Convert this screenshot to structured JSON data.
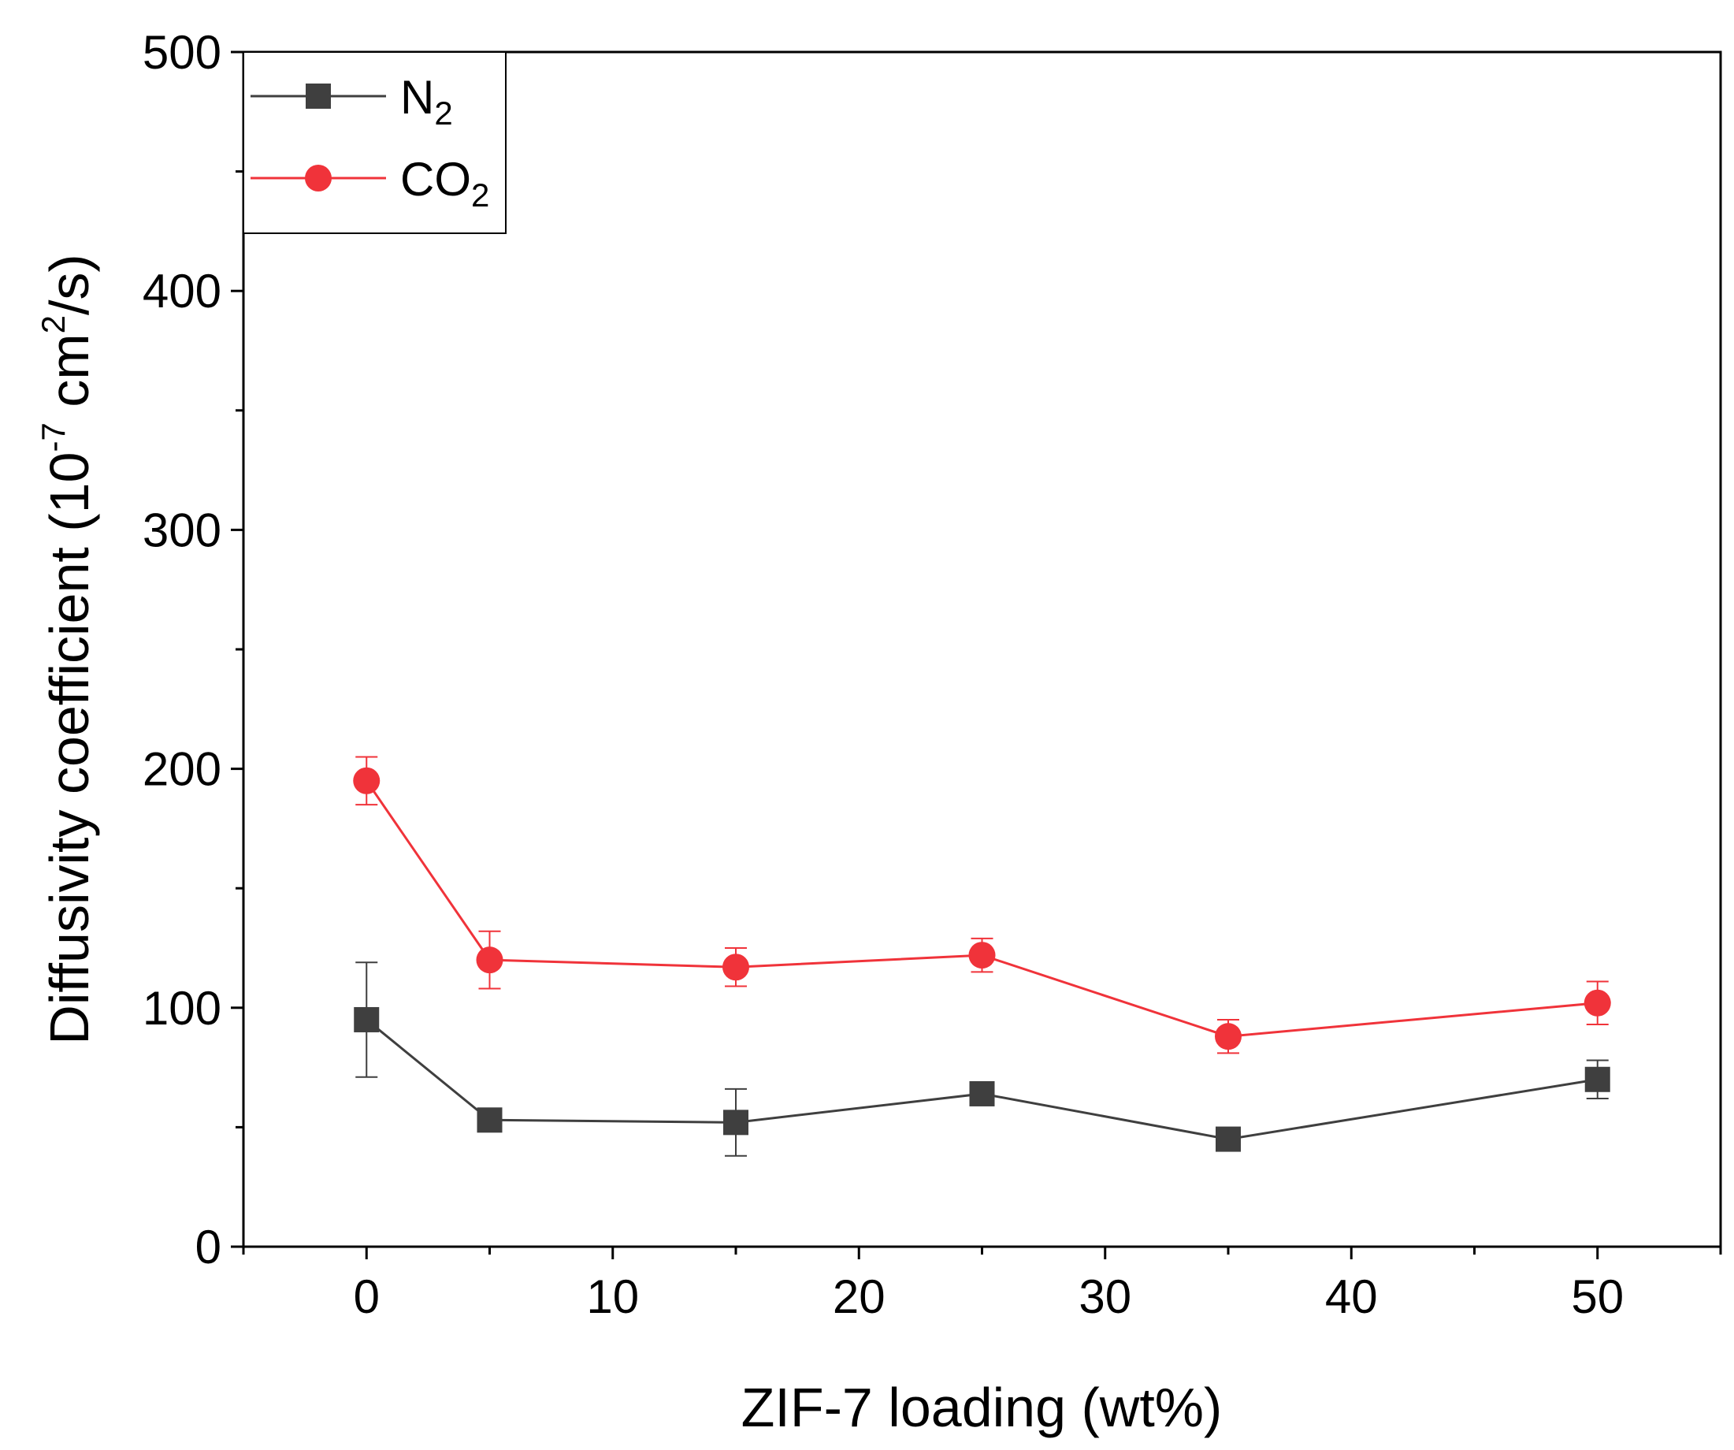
{
  "chart_data": {
    "type": "line",
    "title": "",
    "xlabel": "ZIF-7 loading (wt%)",
    "ylabel": {
      "prefix": "Diffusivity coefficient (10",
      "exp": "-7",
      "mid": " cm",
      "exp2": "2",
      "suffix": "/s)"
    },
    "xlim": [
      -5,
      55
    ],
    "ylim": [
      0,
      500
    ],
    "xticks": [
      0,
      10,
      20,
      30,
      40,
      50
    ],
    "yticks": [
      0,
      100,
      200,
      300,
      400,
      500
    ],
    "legend_position": "top-left",
    "series": [
      {
        "name": "N2",
        "label_main": "N",
        "label_sub": "2",
        "color": "#3f3f3f",
        "marker": "square",
        "x": [
          0,
          5,
          15,
          25,
          35,
          50
        ],
        "y": [
          95,
          53,
          52,
          64,
          45,
          70
        ],
        "error": [
          24,
          0,
          14,
          0,
          0,
          8
        ]
      },
      {
        "name": "CO2",
        "label_main": "CO",
        "label_sub": "2",
        "color": "#f0333a",
        "marker": "circle",
        "x": [
          0,
          5,
          15,
          25,
          35,
          50
        ],
        "y": [
          195,
          120,
          117,
          122,
          88,
          102
        ],
        "error": [
          10,
          12,
          8,
          7,
          7,
          9
        ]
      }
    ]
  }
}
